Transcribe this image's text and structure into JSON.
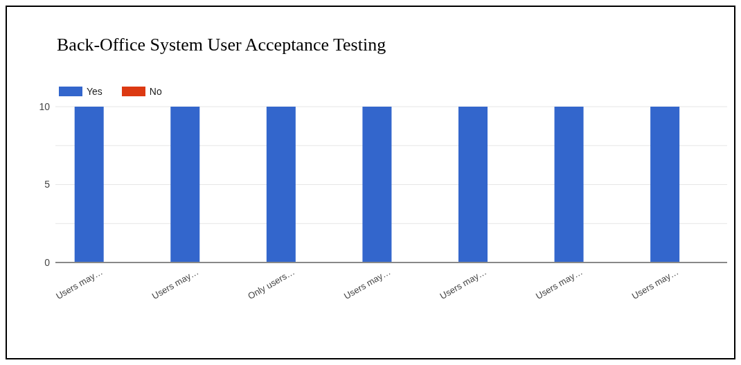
{
  "chart_data": {
    "type": "bar",
    "title": "Back-Office System User Acceptance Testing",
    "categories": [
      "Users may…",
      "Users may…",
      "Only users…",
      "Users may…",
      "Users may…",
      "Users may…",
      "Users may…"
    ],
    "series": [
      {
        "name": "Yes",
        "color": "#3366cc",
        "values": [
          10,
          10,
          10,
          10,
          10,
          10,
          10
        ]
      },
      {
        "name": "No",
        "color": "#dc3912",
        "values": [
          0,
          0,
          0,
          0,
          0,
          0,
          0
        ]
      }
    ],
    "ylim": [
      0,
      10
    ],
    "yticks": [
      0,
      {
        "value": 2.5,
        "label": null
      },
      5,
      {
        "value": 7.5,
        "label": null
      },
      10
    ],
    "grid": "y",
    "legend": "top left"
  }
}
